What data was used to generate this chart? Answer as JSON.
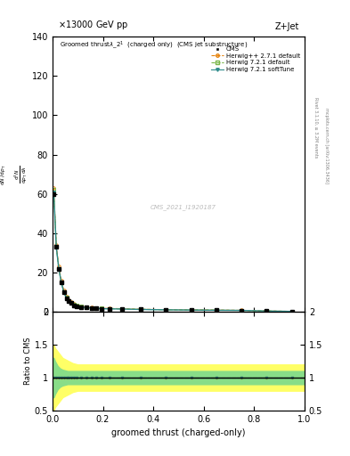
{
  "title_top": "13000 GeV pp",
  "title_right": "Z+Jet",
  "plot_title": "Groomed thrustλ_2¹  (charged only)  (CMS jet substructure)",
  "xlabel": "groomed thrust (charged-only)",
  "ylabel_ratio": "Ratio to CMS",
  "watermark": "CMS_2021_I1920187",
  "rivet_text": "Rivet 3.1.10, ≥ 3.2M events",
  "mcplots_text": "mcplots.cern.ch [arXiv:1306.3436]",
  "xlim": [
    0,
    1
  ],
  "ylim_main": [
    0,
    140
  ],
  "ylim_ratio": [
    0.5,
    2.0
  ],
  "x_data": [
    0.005,
    0.015,
    0.025,
    0.035,
    0.045,
    0.055,
    0.065,
    0.075,
    0.085,
    0.095,
    0.115,
    0.135,
    0.155,
    0.175,
    0.195,
    0.225,
    0.275,
    0.35,
    0.45,
    0.55,
    0.65,
    0.75,
    0.85,
    0.95
  ],
  "cms_y": [
    60,
    33,
    22,
    15,
    10,
    7,
    5.5,
    4.5,
    3.5,
    3.0,
    2.5,
    2.2,
    2.0,
    1.8,
    1.7,
    1.6,
    1.5,
    1.3,
    1.1,
    1.0,
    0.9,
    0.8,
    0.5,
    0.3
  ],
  "herwig_pp_y": [
    63,
    34,
    23,
    16,
    11,
    8,
    6,
    5,
    4,
    3.5,
    3.0,
    2.6,
    2.3,
    2.1,
    1.9,
    1.8,
    1.7,
    1.4,
    1.2,
    1.1,
    1.0,
    0.85,
    0.55,
    0.3
  ],
  "herwig_72_def_y": [
    62,
    33,
    22,
    15,
    10,
    7.5,
    5.5,
    4.5,
    3.8,
    3.2,
    2.8,
    2.4,
    2.1,
    1.9,
    1.8,
    1.7,
    1.6,
    1.35,
    1.15,
    1.05,
    0.95,
    0.8,
    0.5,
    0.3
  ],
  "herwig_72_soft_y": [
    61,
    33,
    22,
    15,
    10,
    7,
    5.5,
    4.5,
    3.5,
    3.0,
    2.5,
    2.2,
    2.0,
    1.8,
    1.7,
    1.6,
    1.5,
    1.3,
    1.1,
    1.0,
    0.9,
    0.8,
    0.5,
    0.3
  ],
  "cms_color": "black",
  "herwig_pp_color": "#e6820a",
  "herwig_72_def_color": "#7ab648",
  "herwig_72_soft_color": "#2e8b8b",
  "band_x": [
    0.0,
    0.005,
    0.01,
    0.02,
    0.03,
    0.04,
    0.05,
    0.06,
    0.07,
    0.08,
    0.09,
    0.1,
    0.12,
    0.14,
    0.16,
    0.18,
    0.2,
    0.25,
    0.3,
    0.4,
    0.5,
    0.6,
    0.7,
    0.8,
    0.9,
    1.0
  ],
  "band_yellow_upper": [
    1.5,
    1.5,
    1.45,
    1.4,
    1.35,
    1.3,
    1.28,
    1.26,
    1.24,
    1.22,
    1.21,
    1.2,
    1.2,
    1.2,
    1.2,
    1.2,
    1.2,
    1.2,
    1.2,
    1.2,
    1.2,
    1.2,
    1.2,
    1.2,
    1.2,
    1.2
  ],
  "band_yellow_lower": [
    0.5,
    0.5,
    0.55,
    0.6,
    0.65,
    0.7,
    0.72,
    0.74,
    0.76,
    0.78,
    0.79,
    0.8,
    0.8,
    0.8,
    0.8,
    0.8,
    0.8,
    0.8,
    0.8,
    0.8,
    0.8,
    0.8,
    0.8,
    0.8,
    0.8,
    0.8
  ],
  "band_green_upper": [
    1.3,
    1.3,
    1.25,
    1.18,
    1.14,
    1.12,
    1.11,
    1.1,
    1.1,
    1.1,
    1.1,
    1.1,
    1.1,
    1.1,
    1.1,
    1.1,
    1.1,
    1.1,
    1.1,
    1.1,
    1.1,
    1.1,
    1.1,
    1.1,
    1.1,
    1.1
  ],
  "band_green_lower": [
    0.7,
    0.7,
    0.75,
    0.82,
    0.86,
    0.88,
    0.89,
    0.9,
    0.9,
    0.9,
    0.9,
    0.9,
    0.9,
    0.9,
    0.9,
    0.9,
    0.9,
    0.9,
    0.9,
    0.9,
    0.9,
    0.9,
    0.9,
    0.9,
    0.9,
    0.9
  ]
}
